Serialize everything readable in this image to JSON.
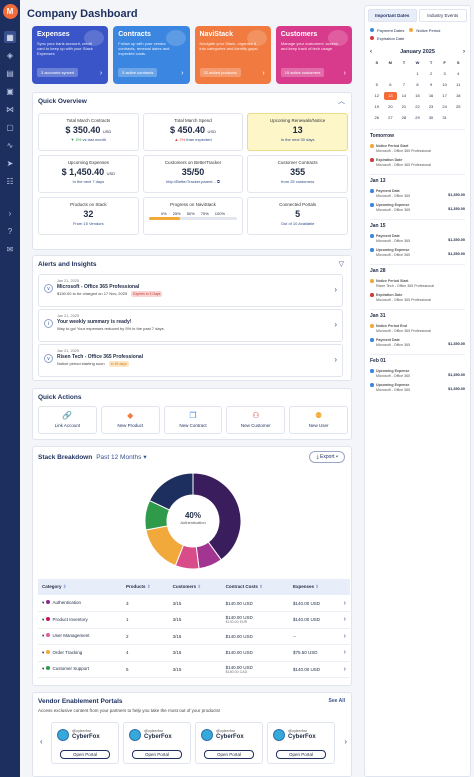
{
  "title": "Company Dashboard",
  "nav_logo": "M",
  "promo": [
    {
      "title": "Expenses",
      "desc": "Sync your bank account, credit card to keep up with your Stack Expenses",
      "badge": "3 accounts synced",
      "color": "#3955c8"
    },
    {
      "title": "Contracts",
      "desc": "Follow up with your vendor contracts, renewal dates and expected costs.",
      "badge": "5 active contracts",
      "color": "#3b86e0"
    },
    {
      "title": "NaviStack",
      "desc": "Navigate your Stack, organize it into categories and identify gaps!",
      "badge": "32 added products",
      "color": "#f07a3f"
    },
    {
      "title": "Customers",
      "desc": "Manage your customers' access and keep track of tech usage.",
      "badge": "15 active customers",
      "color": "#d93b8c"
    }
  ],
  "overview": {
    "title": "Quick Overview",
    "cards": [
      {
        "label": "Total March Contracts",
        "value": "$ 350.40",
        "unit": "USD",
        "sub": "5%",
        "subtext": "vs last month"
      },
      {
        "label": "Total March Spend",
        "value": "$ 450.40",
        "unit": "USD",
        "sub": "2%",
        "subtext": "than expected"
      },
      {
        "label": "Upcoming Renewals/Notice",
        "value": "13",
        "unit": "",
        "sub": "",
        "subtext": "In the next 30 days"
      },
      {
        "label": "Upcoming Expenses",
        "value": "$ 1,450.40",
        "unit": "USD",
        "sub": "",
        "subtext": "In the next 7 days"
      },
      {
        "label": "Customers on BetterTracker",
        "value": "35/50",
        "unit": "",
        "sub": "",
        "subtext": "http://BetterTracker.parent..."
      },
      {
        "label": "Customer Contracts",
        "value": "355",
        "unit": "",
        "sub": "",
        "subtext": "from 25 customers"
      },
      {
        "label": "Products on Stack",
        "value": "32",
        "unit": "",
        "sub": "",
        "subtext": "From 15 Vendors"
      },
      {
        "label": "Progress on NaviStack",
        "value": "",
        "unit": "",
        "sub": "",
        "subtext": ""
      },
      {
        "label": "Connected Portals",
        "value": "5",
        "unit": "",
        "sub": "",
        "subtext": "Out of 10 Available"
      }
    ],
    "progress_ticks": [
      "0%",
      "25%",
      "50%",
      "75%",
      "100%"
    ],
    "progress": 0.35
  },
  "alerts": {
    "title": "Alerts and Insights",
    "items": [
      {
        "date": "Jan 21, 2025",
        "title": "Microsoft - Office 365 Professional",
        "desc": "$150.00 to be charged on 17 Nov, 2025",
        "tag": "Expires in 3 Days",
        "tagcolor": "#fbd5d5",
        "tagtext": "#c0392b"
      },
      {
        "date": "Jan 21, 2025",
        "title": "Your weekly summary is ready!",
        "desc": "Way to go! Your expenses reduced by 5% in the past 7 days.",
        "tag": "",
        "tagcolor": "",
        "tagtext": ""
      },
      {
        "date": "Jan 21, 2025",
        "title": "Risen Tech - Office 365 Professional",
        "desc": "Notice period starting soon",
        "tag": "In 15 days",
        "tagcolor": "#fde6c4",
        "tagtext": "#c97a10"
      }
    ]
  },
  "quick_actions": {
    "title": "Quick Actions",
    "items": [
      "Link Account",
      "New Product",
      "New Contract",
      "New Customer",
      "New User"
    ]
  },
  "stack": {
    "title": "Stack Breakdown",
    "period": "Past 12 Months",
    "export": "Export",
    "center_value": "40%",
    "center_label": "Authentication",
    "columns": [
      "Category",
      "Products",
      "Customers",
      "Contract Costs",
      "Expenses"
    ],
    "rows": [
      {
        "name": "Authentication",
        "color": "#8a2b8c",
        "products": "3",
        "customers": "3/15",
        "contract": "$140.00 USD",
        "contract2": "",
        "expenses": "$140.00 USD",
        "expenses2": ""
      },
      {
        "name": "Product Inventory",
        "color": "#c2185b",
        "products": "1",
        "customers": "3/15",
        "contract": "$140.00 USD",
        "contract2": "€130.00 EUR",
        "expenses": "$140.00 USD",
        "expenses2": ""
      },
      {
        "name": "User Management",
        "color": "#e05d9c",
        "products": "2",
        "customers": "3/15",
        "contract": "$140.00 USD",
        "contract2": "",
        "expenses": "--",
        "expenses2": ""
      },
      {
        "name": "Order Tracking",
        "color": "#f2a93b",
        "products": "4",
        "customers": "3/15",
        "contract": "$140.00 USD",
        "contract2": "",
        "expenses": "$75.50 USD",
        "expenses2": ""
      },
      {
        "name": "Customer Support",
        "color": "#2e9a4a",
        "products": "5",
        "customers": "3/15",
        "contract": "$140.00 USD",
        "contract2": "$180.00 CAD",
        "expenses": "$140.00 USD",
        "expenses2": ""
      }
    ]
  },
  "chart_data": {
    "type": "pie",
    "categories": [
      "Authentication",
      "Product Inventory",
      "User Management",
      "Order Tracking",
      "Customer Support",
      "Other"
    ],
    "values": [
      40,
      8,
      8,
      16,
      10,
      18
    ],
    "colors": [
      "#3a1d5c",
      "#a23592",
      "#d94c8a",
      "#f2a93b",
      "#2e9a4a",
      "#1d2f5e"
    ]
  },
  "vendors": {
    "title": "Vendor Enablement Portals",
    "see_all": "See All",
    "desc": "Access exclusive content from your partners to help you take the most out of your products!",
    "items": [
      {
        "handle": "@cyberfox",
        "name": "CyberFox",
        "button": "Open Portal"
      },
      {
        "handle": "@cyberfox",
        "name": "CyberFox",
        "button": "Open Portal"
      },
      {
        "handle": "@cyberfox",
        "name": "CyberFox",
        "button": "Open Portal"
      },
      {
        "handle": "@cyberfox",
        "name": "CyberFox",
        "button": "Open Portal"
      }
    ]
  },
  "right": {
    "tabs": [
      "Important Dates",
      "Industry Events"
    ],
    "legend": [
      {
        "label": "Payment Dates",
        "color": "#3b86e0"
      },
      {
        "label": "Notice Period",
        "color": "#f2a93b"
      },
      {
        "label": "Expiration Date",
        "color": "#d33a3a"
      }
    ],
    "month": "January 2025",
    "weekdays": [
      "S",
      "M",
      "T",
      "W",
      "T",
      "F",
      "S"
    ],
    "days": [
      "",
      "",
      "",
      "1",
      "2",
      "3",
      "4",
      "5",
      "6",
      "7",
      "8",
      "9",
      "10",
      "11",
      "12",
      "13",
      "14",
      "15",
      "16",
      "17",
      "18",
      "19",
      "20",
      "21",
      "22",
      "23",
      "24",
      "25",
      "26",
      "27",
      "28",
      "29",
      "30",
      "31"
    ],
    "today": "13",
    "events": [
      {
        "day": "Tomorrow",
        "items": [
          {
            "t": "Notice Period Start",
            "s": "Microsoft - Office 365 Professional",
            "a": "",
            "c": "#f2a93b"
          },
          {
            "t": "Expiration Date",
            "s": "Microsoft - Office 365 Professional",
            "a": "",
            "c": "#d33a3a"
          }
        ]
      },
      {
        "day": "Jan 13",
        "items": [
          {
            "t": "Payment Date",
            "s": "Microsoft - Office 365",
            "a": "$1,350.00",
            "c": "#3b86e0"
          },
          {
            "t": "Upcoming Expense",
            "s": "Microsoft - Office 365",
            "a": "$1,350.00",
            "c": "#3b86e0"
          }
        ]
      },
      {
        "day": "Jan 15",
        "items": [
          {
            "t": "Payment Date",
            "s": "Microsoft - Office 365",
            "a": "$1,350.00",
            "c": "#3b86e0"
          },
          {
            "t": "Upcoming Expense",
            "s": "Microsoft - Office 365",
            "a": "$1,350.00",
            "c": "#3b86e0"
          }
        ]
      },
      {
        "day": "Jan 28",
        "items": [
          {
            "t": "Notice Period Start",
            "s": "Risen Tech - Office 365 Professional",
            "a": "",
            "c": "#f2a93b"
          },
          {
            "t": "Expiration Date",
            "s": "Microsoft - Office 365 Professional",
            "a": "",
            "c": "#d33a3a"
          }
        ]
      },
      {
        "day": "Jan 31",
        "items": [
          {
            "t": "Notice Period End",
            "s": "Microsoft - Office 365 Professional",
            "a": "",
            "c": "#f2a93b"
          },
          {
            "t": "Payment Date",
            "s": "Microsoft - Office 365",
            "a": "$1,350.00",
            "c": "#3b86e0"
          }
        ]
      },
      {
        "day": "Feb 01",
        "items": [
          {
            "t": "Upcoming Expense",
            "s": "Microsoft - Office 365",
            "a": "$1,350.00",
            "c": "#3b86e0"
          },
          {
            "t": "Upcoming Expense",
            "s": "Microsoft - Office 365",
            "a": "$1,350.00",
            "c": "#3b86e0"
          }
        ]
      }
    ]
  }
}
